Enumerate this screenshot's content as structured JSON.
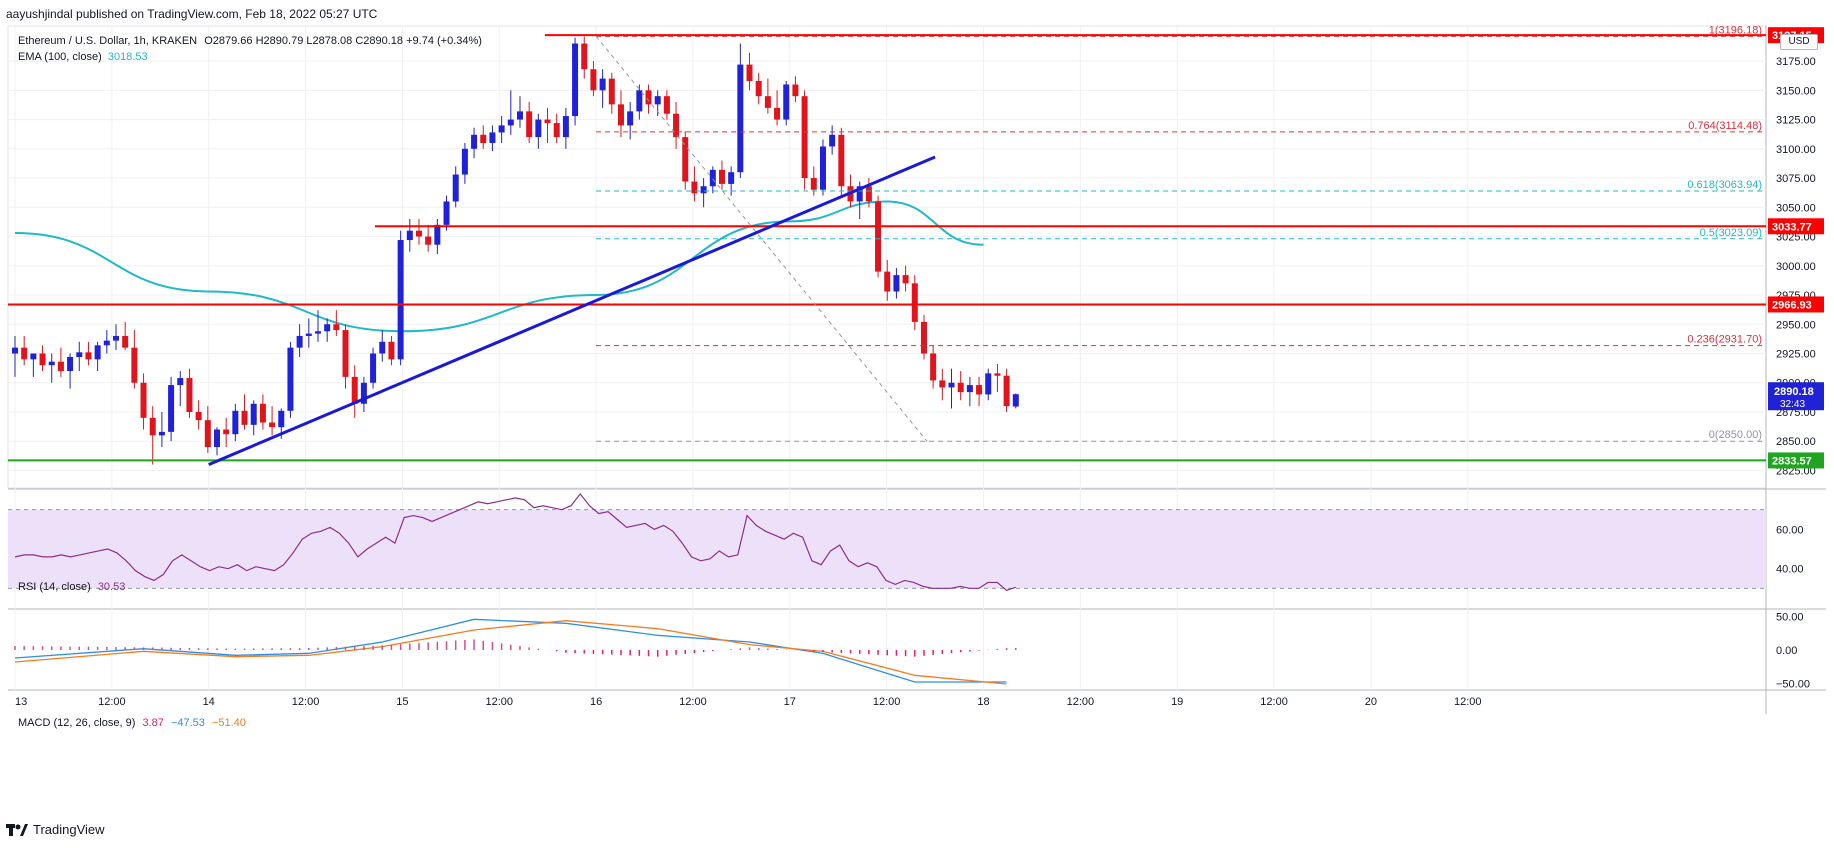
{
  "header": {
    "published": "aayushjindal published on TradingView.com, Feb 18, 2022 05:27 UTC",
    "symbol_title": "Ethereum / U.S. Dollar, 1h, KRAKEN",
    "o_label": "O",
    "o_value": "2879.66",
    "h_label": "H",
    "h_value": "2890.79",
    "l_label": "L",
    "l_value": "2878.08",
    "c_label": "C",
    "c_value": "2890.18",
    "change": "+9.74 (+0.34%)",
    "ema_label": "EMA (100, close)",
    "ema_value": "3018.53",
    "currency": "USD"
  },
  "footer": {
    "brand": "TradingView"
  },
  "colors": {
    "up": "#1f22d6",
    "down": "#e0141c",
    "ema": "#22b8c9",
    "trendline": "#1a1ad6",
    "resistance": "#ff0000",
    "support": "#1fa51f",
    "fib": "#e0303a",
    "fib_mid": "#22b8c9",
    "rsi": "#8c2d8c",
    "rsi_band": "#ede1fa",
    "macd": "#2f8fe8",
    "signal": "#f57c1f",
    "hist": "#e91e63"
  },
  "chart_data": [
    {
      "type": "candlestick",
      "title": "Ethereum / U.S. Dollar, 1h, KRAKEN",
      "x_tick_labels": [
        "13",
        "12:00",
        "14",
        "12:00",
        "15",
        "12:00",
        "16",
        "12:00",
        "17",
        "12:00",
        "18",
        "12:00",
        "19",
        "12:00",
        "20",
        "12:00"
      ],
      "ylim": [
        2810,
        3205
      ],
      "y_ticks": [
        2825,
        2850,
        2875,
        2900,
        2925,
        2950,
        2975,
        3000,
        3025,
        3050,
        3075,
        3100,
        3125,
        3150,
        3175
      ],
      "grid": true,
      "candles": [
        [
          2925,
          2940,
          2905,
          2930
        ],
        [
          2930,
          2940,
          2915,
          2920
        ],
        [
          2920,
          2925,
          2905,
          2925
        ],
        [
          2925,
          2932,
          2910,
          2915
        ],
        [
          2915,
          2925,
          2900,
          2918
        ],
        [
          2918,
          2930,
          2905,
          2910
        ],
        [
          2910,
          2925,
          2895,
          2922
        ],
        [
          2922,
          2935,
          2910,
          2926
        ],
        [
          2926,
          2935,
          2915,
          2920
        ],
        [
          2920,
          2935,
          2910,
          2932
        ],
        [
          2932,
          2945,
          2925,
          2936
        ],
        [
          2936,
          2950,
          2928,
          2940
        ],
        [
          2940,
          2952,
          2928,
          2930
        ],
        [
          2930,
          2945,
          2895,
          2900
        ],
        [
          2900,
          2908,
          2860,
          2870
        ],
        [
          2870,
          2880,
          2830,
          2855
        ],
        [
          2855,
          2875,
          2845,
          2858
        ],
        [
          2858,
          2905,
          2850,
          2898
        ],
        [
          2898,
          2910,
          2880,
          2904
        ],
        [
          2904,
          2912,
          2870,
          2875
        ],
        [
          2875,
          2885,
          2860,
          2868
        ],
        [
          2868,
          2880,
          2840,
          2845
        ],
        [
          2845,
          2862,
          2838,
          2860
        ],
        [
          2860,
          2870,
          2845,
          2856
        ],
        [
          2856,
          2882,
          2850,
          2876
        ],
        [
          2876,
          2890,
          2860,
          2864
        ],
        [
          2864,
          2885,
          2855,
          2882
        ],
        [
          2882,
          2890,
          2860,
          2866
        ],
        [
          2866,
          2880,
          2855,
          2862
        ],
        [
          2862,
          2878,
          2852,
          2876
        ],
        [
          2876,
          2935,
          2870,
          2930
        ],
        [
          2930,
          2950,
          2922,
          2940
        ],
        [
          2940,
          2955,
          2930,
          2942
        ],
        [
          2942,
          2962,
          2935,
          2944
        ],
        [
          2944,
          2955,
          2935,
          2950
        ],
        [
          2950,
          2962,
          2940,
          2945
        ],
        [
          2945,
          2950,
          2895,
          2905
        ],
        [
          2905,
          2915,
          2870,
          2882
        ],
        [
          2882,
          2905,
          2875,
          2900
        ],
        [
          2900,
          2930,
          2895,
          2925
        ],
        [
          2925,
          2945,
          2918,
          2935
        ],
        [
          2935,
          2940,
          2915,
          2920
        ],
        [
          2920,
          3030,
          2915,
          3022
        ],
        [
          3022,
          3040,
          3012,
          3030
        ],
        [
          3030,
          3040,
          3018,
          3025
        ],
        [
          3025,
          3035,
          3012,
          3018
        ],
        [
          3018,
          3040,
          3010,
          3035
        ],
        [
          3035,
          3060,
          3030,
          3055
        ],
        [
          3055,
          3085,
          3050,
          3078
        ],
        [
          3078,
          3105,
          3070,
          3100
        ],
        [
          3100,
          3118,
          3092,
          3112
        ],
        [
          3112,
          3120,
          3100,
          3105
        ],
        [
          3105,
          3120,
          3098,
          3114
        ],
        [
          3114,
          3128,
          3105,
          3120
        ],
        [
          3120,
          3150,
          3112,
          3125
        ],
        [
          3125,
          3145,
          3118,
          3132
        ],
        [
          3132,
          3140,
          3105,
          3110
        ],
        [
          3110,
          3130,
          3100,
          3125
        ],
        [
          3125,
          3135,
          3105,
          3122
        ],
        [
          3122,
          3130,
          3105,
          3110
        ],
        [
          3110,
          3135,
          3100,
          3128
        ],
        [
          3128,
          3195,
          3120,
          3190
        ],
        [
          3190,
          3196,
          3160,
          3168
        ],
        [
          3168,
          3175,
          3145,
          3150
        ],
        [
          3150,
          3168,
          3135,
          3160
        ],
        [
          3160,
          3165,
          3130,
          3138
        ],
        [
          3138,
          3150,
          3110,
          3120
        ],
        [
          3120,
          3140,
          3108,
          3132
        ],
        [
          3132,
          3155,
          3125,
          3150
        ],
        [
          3150,
          3155,
          3130,
          3138
        ],
        [
          3138,
          3150,
          3128,
          3145
        ],
        [
          3145,
          3150,
          3125,
          3130
        ],
        [
          3130,
          3140,
          3100,
          3110
        ],
        [
          3110,
          3115,
          3065,
          3072
        ],
        [
          3072,
          3085,
          3055,
          3062
        ],
        [
          3062,
          3075,
          3050,
          3068
        ],
        [
          3068,
          3085,
          3062,
          3082
        ],
        [
          3082,
          3090,
          3065,
          3070
        ],
        [
          3070,
          3085,
          3060,
          3080
        ],
        [
          3080,
          3190,
          3075,
          3172
        ],
        [
          3172,
          3182,
          3150,
          3158
        ],
        [
          3158,
          3165,
          3138,
          3145
        ],
        [
          3145,
          3160,
          3130,
          3135
        ],
        [
          3135,
          3150,
          3120,
          3125
        ],
        [
          3125,
          3158,
          3120,
          3155
        ],
        [
          3155,
          3162,
          3140,
          3145
        ],
        [
          3145,
          3150,
          3065,
          3075
        ],
        [
          3075,
          3085,
          3060,
          3065
        ],
        [
          3065,
          3108,
          3060,
          3102
        ],
        [
          3102,
          3120,
          3095,
          3112
        ],
        [
          3112,
          3118,
          3060,
          3068
        ],
        [
          3068,
          3078,
          3050,
          3055
        ],
        [
          3055,
          3072,
          3040,
          3068
        ],
        [
          3068,
          3075,
          3050,
          3055
        ],
        [
          3055,
          3060,
          2990,
          2995
        ],
        [
          2995,
          3005,
          2970,
          2978
        ],
        [
          2978,
          2998,
          2972,
          2992
        ],
        [
          2992,
          3000,
          2978,
          2985
        ],
        [
          2985,
          2992,
          2945,
          2952
        ],
        [
          2952,
          2958,
          2920,
          2925
        ],
        [
          2925,
          2932,
          2895,
          2902
        ],
        [
          2902,
          2912,
          2885,
          2896
        ],
        [
          2896,
          2912,
          2878,
          2900
        ],
        [
          2900,
          2910,
          2885,
          2892
        ],
        [
          2892,
          2905,
          2880,
          2898
        ],
        [
          2898,
          2905,
          2880,
          2890
        ],
        [
          2890,
          2912,
          2885,
          2908
        ],
        [
          2908,
          2916,
          2892,
          2906
        ],
        [
          2906,
          2912,
          2875,
          2880
        ],
        [
          2879.66,
          2890.79,
          2878.08,
          2890.18
        ]
      ],
      "ema_series": [
        [
          "13",
          3028
        ],
        [
          "14",
          2978
        ],
        [
          "15",
          2944
        ],
        [
          "16",
          2975
        ],
        [
          "17",
          3038
        ],
        [
          "17 12:00",
          3055
        ],
        [
          "18",
          3018
        ]
      ],
      "ema_value": 3018.53,
      "levels": [
        {
          "name": "resistance",
          "price": 3197.15,
          "label": "3197.15"
        },
        {
          "name": "resistance",
          "price": 3033.77,
          "label": "3033.77"
        },
        {
          "name": "resistance",
          "price": 2966.93,
          "label": "2966.93"
        },
        {
          "name": "support",
          "price": 2833.57,
          "label": "2833.57"
        }
      ],
      "last_price": {
        "value": 2890.18,
        "label": "2890.18",
        "countdown": "32:43"
      },
      "fib_levels": [
        {
          "ratio_label": "1(3196.18)",
          "price": 3196.18
        },
        {
          "ratio_label": "0.764(3114.48)",
          "price": 3114.48
        },
        {
          "ratio_label": "0.618(3063.94)",
          "price": 3063.94
        },
        {
          "ratio_label": "0.5(3023.09)",
          "price": 3023.09
        },
        {
          "ratio_label": "0.236(2931.70)",
          "price": 2931.7
        },
        {
          "ratio_label": "0(2850.00)",
          "price": 2850.0
        }
      ],
      "trendline": {
        "from": [
          "14",
          2830
        ],
        "to": [
          "17 18:00",
          3093
        ]
      }
    },
    {
      "type": "line",
      "title": "RSI (14, close)",
      "value": "30.53",
      "ylim": [
        20,
        80
      ],
      "y_ticks": [
        40,
        60
      ],
      "band": [
        30,
        70
      ],
      "values": [
        46,
        47,
        47,
        46,
        46,
        47,
        46,
        47,
        48,
        49,
        50,
        48,
        44,
        39,
        36,
        34,
        37,
        44,
        47,
        44,
        41,
        39,
        41,
        40,
        42,
        39,
        41,
        40,
        39,
        42,
        48,
        55,
        58,
        59,
        61,
        58,
        53,
        46,
        50,
        53,
        56,
        53,
        66,
        67,
        66,
        64,
        66,
        68,
        70,
        72,
        74,
        73,
        74,
        75,
        76,
        75,
        71,
        72,
        71,
        70,
        72,
        78,
        72,
        68,
        69,
        65,
        61,
        62,
        63,
        60,
        62,
        59,
        53,
        46,
        44,
        45,
        49,
        46,
        47,
        67,
        62,
        59,
        57,
        55,
        58,
        56,
        44,
        42,
        49,
        52,
        44,
        41,
        43,
        41,
        34,
        32,
        34,
        33,
        31,
        30,
        30,
        30,
        31,
        30,
        30,
        33,
        33,
        29,
        30.5
      ]
    },
    {
      "type": "line",
      "title": "MACD (12, 26, close, 9)",
      "values_text": {
        "hist": "3.87",
        "macd": "−47.53",
        "signal": "−51.40"
      },
      "ylim": [
        -60,
        60
      ],
      "y_ticks": [
        50,
        0,
        -50
      ],
      "series": [
        {
          "name": "macd",
          "x_index": [
            0,
            14,
            24,
            32,
            40,
            50,
            60,
            70,
            80,
            88,
            98,
            108
          ],
          "values": [
            -12,
            2,
            -8,
            -5,
            12,
            46,
            40,
            22,
            12,
            -5,
            -48,
            -48
          ]
        },
        {
          "name": "signal",
          "x_index": [
            0,
            14,
            24,
            32,
            40,
            50,
            60,
            70,
            80,
            88,
            98,
            108
          ],
          "values": [
            -18,
            -2,
            -10,
            -8,
            5,
            30,
            44,
            32,
            8,
            -2,
            -38,
            -51
          ]
        }
      ]
    }
  ]
}
